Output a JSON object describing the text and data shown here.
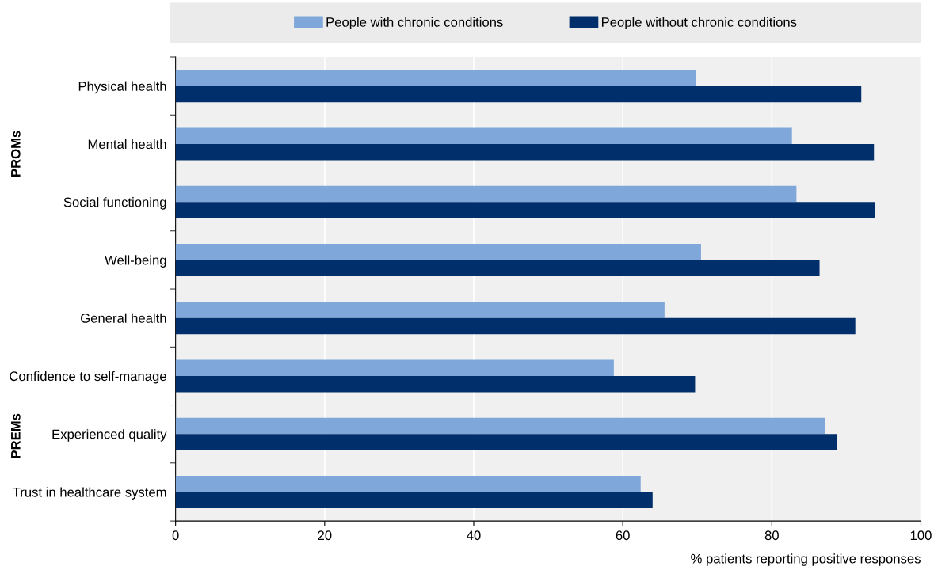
{
  "chart_data": {
    "type": "bar",
    "orientation": "horizontal",
    "categories": [
      "Physical health",
      "Mental health",
      "Social functioning",
      "Well-being",
      "General health",
      "Confidence to self-manage",
      "Experienced quality",
      "Trust in healthcare system"
    ],
    "series": [
      {
        "name": "People with chronic conditions",
        "color": "#7fa7da",
        "values": [
          69.8,
          82.7,
          83.3,
          70.5,
          65.6,
          58.8,
          87.1,
          62.4
        ]
      },
      {
        "name": "People without chronic conditions",
        "color": "#002f6c",
        "values": [
          92.0,
          93.7,
          93.8,
          86.4,
          91.2,
          69.7,
          88.7,
          64.0
        ]
      }
    ],
    "xlim": [
      0,
      100
    ],
    "xticks": [
      0,
      20,
      40,
      60,
      80,
      100
    ],
    "xlabel": "% patients reporting positive responses",
    "annotations": [
      "PROMs",
      "PREMs"
    ],
    "grid": "x",
    "legend": "top"
  }
}
